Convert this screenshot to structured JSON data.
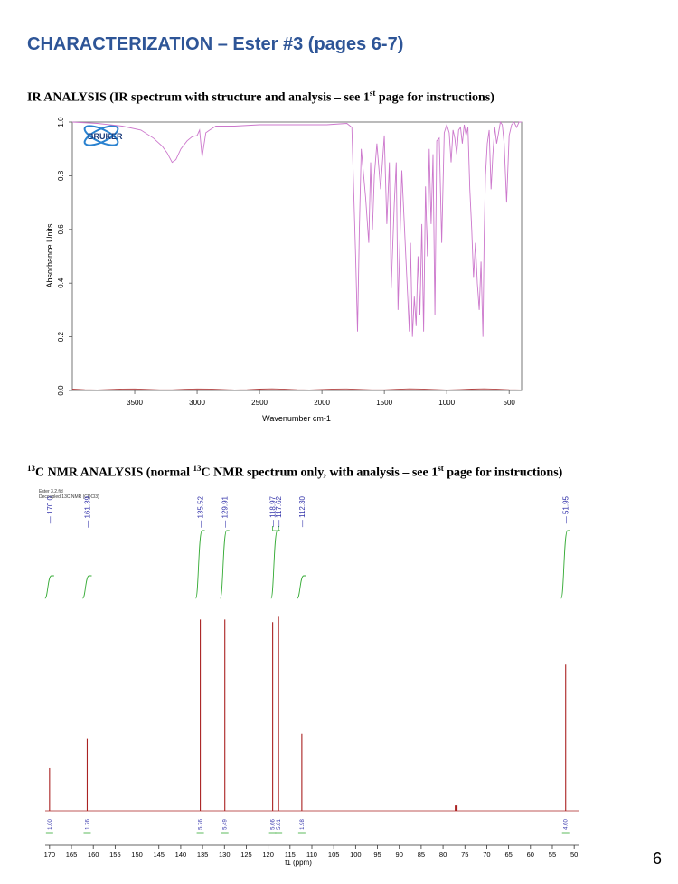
{
  "page": {
    "heading": "CHARACTERIZATION – Ester #3 (pages 6-7)",
    "page_number": "6"
  },
  "ir_section": {
    "title_prefix": "IR ANALYSIS (IR spectrum with structure and analysis – see 1",
    "title_sup": "st",
    "title_suffix": " page for instructions)"
  },
  "nmr_section": {
    "title_sup1": "13",
    "title_mid": "C NMR ANALYSIS (normal ",
    "title_sup2": "13",
    "title_mid2": "C NMR spectrum only, with analysis – see 1",
    "title_sup3": "st",
    "title_suffix": " page for instructions)",
    "header_line1": "Ester 3.2.fid",
    "header_line2": "Decoupled 13C NMR (CDCl3)"
  },
  "chart_data": [
    {
      "type": "line",
      "name": "IR spectrum",
      "logo": "BRUKER",
      "xlabel": "Wavenumber cm-1",
      "ylabel": "Absorbance Units",
      "xlim": [
        4000,
        400
      ],
      "ylim": [
        0.0,
        1.0
      ],
      "x_ticks": [
        3500,
        3000,
        2500,
        2000,
        1500,
        1000,
        500
      ],
      "y_ticks": [
        "0.0",
        "0.2",
        "0.4",
        "0.6",
        "0.8",
        "1.0"
      ],
      "line_color": "#cc77cc",
      "baseline_color": "#b04040",
      "x": [
        4000,
        3800,
        3600,
        3450,
        3350,
        3280,
        3240,
        3200,
        3170,
        3130,
        3080,
        3040,
        3000,
        2980,
        2960,
        2930,
        2900,
        2850,
        2700,
        2500,
        2300,
        2100,
        1960,
        1800,
        1760,
        1730,
        1715,
        1700,
        1685,
        1650,
        1625,
        1610,
        1595,
        1580,
        1560,
        1530,
        1500,
        1480,
        1460,
        1445,
        1420,
        1405,
        1390,
        1360,
        1330,
        1300,
        1290,
        1275,
        1260,
        1245,
        1230,
        1215,
        1200,
        1185,
        1170,
        1155,
        1140,
        1125,
        1110,
        1095,
        1080,
        1060,
        1040,
        1020,
        1000,
        980,
        965,
        950,
        935,
        920,
        905,
        890,
        875,
        860,
        845,
        830,
        815,
        800,
        785,
        770,
        755,
        740,
        725,
        710,
        700,
        690,
        675,
        660,
        645,
        630,
        615,
        600,
        585,
        570,
        555,
        540,
        520,
        500,
        480,
        460,
        440,
        420,
        400
      ],
      "y": [
        1.0,
        0.995,
        0.985,
        0.97,
        0.94,
        0.91,
        0.885,
        0.85,
        0.86,
        0.9,
        0.93,
        0.945,
        0.95,
        0.97,
        0.87,
        0.96,
        0.97,
        0.985,
        0.985,
        0.99,
        0.99,
        0.99,
        0.99,
        0.995,
        0.98,
        0.5,
        0.22,
        0.6,
        0.9,
        0.72,
        0.55,
        0.85,
        0.6,
        0.8,
        0.92,
        0.75,
        0.95,
        0.62,
        0.85,
        0.38,
        0.7,
        0.85,
        0.3,
        0.82,
        0.52,
        0.22,
        0.55,
        0.2,
        0.35,
        0.24,
        0.5,
        0.28,
        0.62,
        0.22,
        0.76,
        0.5,
        0.9,
        0.62,
        0.88,
        0.28,
        0.93,
        0.94,
        0.55,
        0.96,
        0.99,
        0.96,
        0.85,
        0.97,
        0.94,
        0.88,
        0.97,
        0.98,
        0.92,
        0.99,
        0.95,
        0.98,
        0.75,
        0.6,
        0.42,
        0.55,
        0.4,
        0.3,
        0.48,
        0.2,
        0.58,
        0.8,
        0.92,
        0.97,
        0.75,
        0.88,
        0.98,
        0.92,
        0.96,
        1.0,
        0.99,
        0.92,
        0.7,
        0.95,
        0.99,
        1.0,
        0.98,
        1.0,
        1.0
      ]
    },
    {
      "type": "line",
      "name": "13C NMR spectrum",
      "xlabel": "f1 (ppm)",
      "xlim": [
        171,
        49
      ],
      "x_ticks": [
        170,
        165,
        160,
        155,
        150,
        145,
        140,
        135,
        130,
        125,
        120,
        115,
        110,
        105,
        100,
        95,
        90,
        85,
        80,
        75,
        70,
        65,
        60,
        55,
        50
      ],
      "line_color": "#aa2222",
      "label_color": "#3333aa",
      "integral_color": "#33aa33",
      "peaks": [
        {
          "ppm": 170.0,
          "label": "170.0",
          "height": 0.16,
          "integral": "1.00"
        },
        {
          "ppm": 161.39,
          "label": "161.39",
          "height": 0.27,
          "integral": "1.76"
        },
        {
          "ppm": 135.52,
          "label": "135.52",
          "height": 0.72,
          "integral": "5.76"
        },
        {
          "ppm": 129.91,
          "label": "129.91",
          "height": 0.72,
          "integral": "5.49"
        },
        {
          "ppm": 118.97,
          "label": "118.97",
          "height": 0.71,
          "integral": "5.66"
        },
        {
          "ppm": 117.62,
          "label": "117.62",
          "height": 0.73,
          "integral": "5.81"
        },
        {
          "ppm": 112.3,
          "label": "112.30",
          "height": 0.29,
          "integral": "1.98"
        },
        {
          "ppm": 51.95,
          "label": "51.95",
          "height": 0.55,
          "integral": "4.60"
        }
      ],
      "solvent_ppm": 77.0,
      "solvent_height": 0.02
    }
  ]
}
